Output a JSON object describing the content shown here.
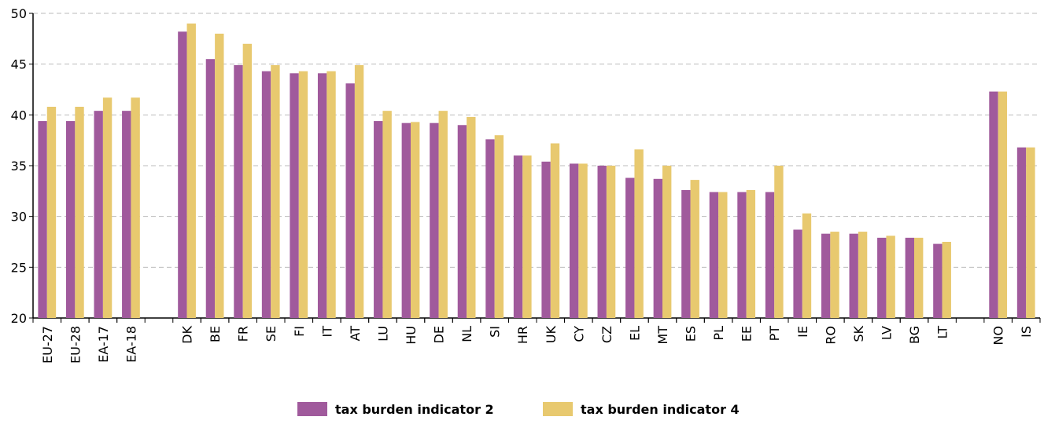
{
  "chart_data": {
    "type": "bar",
    "categories": [
      "EU-27",
      "EU-28",
      "EA-17",
      "EA-18",
      null,
      "DK",
      "BE",
      "FR",
      "SE",
      "FI",
      "IT",
      "AT",
      "LU",
      "HU",
      "DE",
      "NL",
      "SI",
      "HR",
      "UK",
      "CY",
      "CZ",
      "EL",
      "MT",
      "ES",
      "PL",
      "EE",
      "PT",
      "IE",
      "RO",
      "SK",
      "LV",
      "BG",
      "LT",
      null,
      "NO",
      "IS"
    ],
    "series": [
      {
        "name": "tax burden indicator 2",
        "color": "#a05a9c",
        "values": [
          39.4,
          39.4,
          40.4,
          40.4,
          null,
          48.2,
          45.5,
          44.9,
          44.3,
          44.1,
          44.1,
          43.1,
          39.4,
          39.2,
          39.2,
          39.0,
          37.6,
          36.0,
          35.4,
          35.2,
          35.0,
          33.8,
          33.7,
          32.6,
          32.4,
          32.4,
          32.4,
          28.7,
          28.3,
          28.3,
          27.9,
          27.9,
          27.3,
          null,
          42.3,
          36.8
        ]
      },
      {
        "name": "tax burden indicator 4",
        "color": "#e8c96f",
        "values": [
          40.8,
          40.8,
          41.7,
          41.7,
          null,
          49.0,
          48.0,
          47.0,
          44.9,
          44.3,
          44.3,
          44.9,
          40.4,
          39.3,
          40.4,
          39.8,
          38.0,
          36.0,
          37.2,
          35.2,
          35.0,
          36.6,
          35.0,
          33.6,
          32.4,
          32.6,
          35.0,
          30.3,
          28.5,
          28.5,
          28.1,
          27.9,
          27.5,
          null,
          42.3,
          36.8
        ]
      }
    ],
    "ylim": [
      20,
      50
    ],
    "yticks": [
      20,
      25,
      30,
      35,
      40,
      45,
      50
    ],
    "grid": true,
    "legend": "bottom"
  }
}
